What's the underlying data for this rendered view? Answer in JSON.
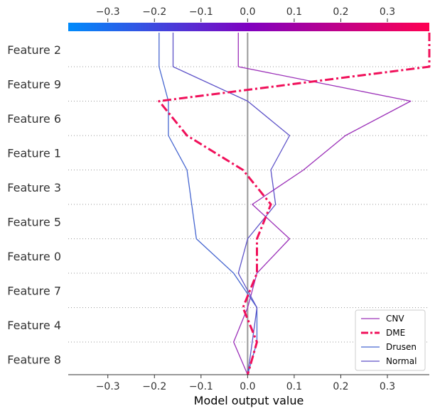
{
  "chart_data": {
    "type": "line",
    "title": "",
    "xlabel": "Model output value",
    "ylabel": "",
    "xlim": [
      -0.385,
      0.39
    ],
    "x_ticks": [
      -0.3,
      -0.2,
      -0.1,
      0.0,
      0.1,
      0.2,
      0.3
    ],
    "x_tick_labels": [
      "−0.3",
      "−0.2",
      "−0.1",
      "0.0",
      "0.1",
      "0.2",
      "0.3"
    ],
    "base_value": 0.0,
    "features": [
      "Feature 2",
      "Feature 9",
      "Feature 6",
      "Feature 1",
      "Feature 3",
      "Feature 5",
      "Feature 0",
      "Feature 7",
      "Feature 4",
      "Feature 8"
    ],
    "colorbar": {
      "colors": [
        "#008bfb",
        "#8000c0",
        "#ff0052"
      ]
    },
    "legend": {
      "position": "lower-right"
    },
    "grid": false,
    "series": [
      {
        "name": "CNV",
        "color": "#9b30b8",
        "style": "solid",
        "values": [
          -0.02,
          0.35,
          0.21,
          0.12,
          0.01,
          0.09,
          0.02,
          0.0,
          -0.03,
          0.0
        ]
      },
      {
        "name": "DME",
        "color": "#f0105a",
        "style": "dashdot",
        "values": [
          0.39,
          -0.19,
          -0.13,
          -0.01,
          0.05,
          0.02,
          0.02,
          -0.01,
          0.02,
          0.0
        ]
      },
      {
        "name": "Drusen",
        "color": "#4666d0",
        "style": "solid",
        "values": [
          -0.19,
          -0.17,
          -0.17,
          -0.13,
          -0.12,
          -0.11,
          -0.03,
          0.02,
          0.02,
          0.0
        ]
      },
      {
        "name": "Normal",
        "color": "#5d52c8",
        "style": "solid",
        "values": [
          -0.16,
          0.0,
          0.09,
          0.05,
          0.06,
          0.0,
          -0.02,
          0.02,
          0.01,
          0.0
        ]
      }
    ]
  }
}
